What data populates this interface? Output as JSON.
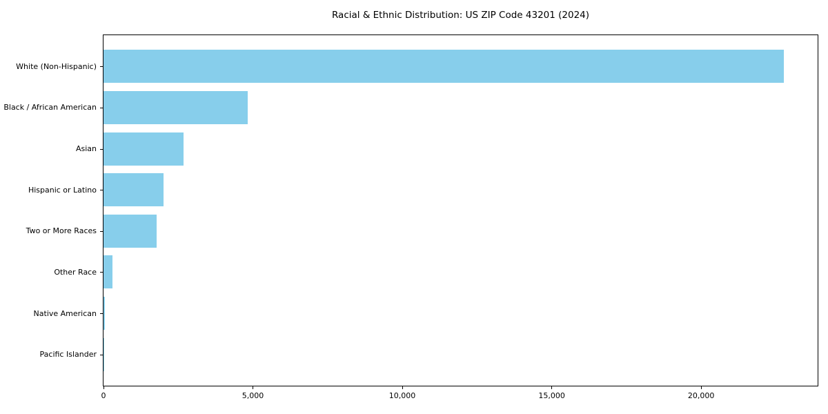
{
  "chart_data": {
    "type": "bar",
    "orientation": "horizontal",
    "title": "Racial & Ethnic Distribution: US ZIP Code 43201 (2024)",
    "categories": [
      "White (Non-Hispanic)",
      "Black / African American",
      "Asian",
      "Hispanic or Latino",
      "Two or More Races",
      "Other Race",
      "Native American",
      "Pacific Islander"
    ],
    "values": [
      22770,
      4820,
      2690,
      2000,
      1770,
      300,
      50,
      15
    ],
    "xlabel": "",
    "ylabel": "",
    "xlim": [
      0,
      23900
    ],
    "xticks": [
      0,
      5000,
      10000,
      15000,
      20000
    ],
    "xtick_labels": [
      "0",
      "5,000",
      "10,000",
      "15,000",
      "20,000"
    ],
    "bar_color": "#87CEEB",
    "background_color": "#ffffff",
    "axis_color": "#000000",
    "grid": false,
    "legend": null
  }
}
